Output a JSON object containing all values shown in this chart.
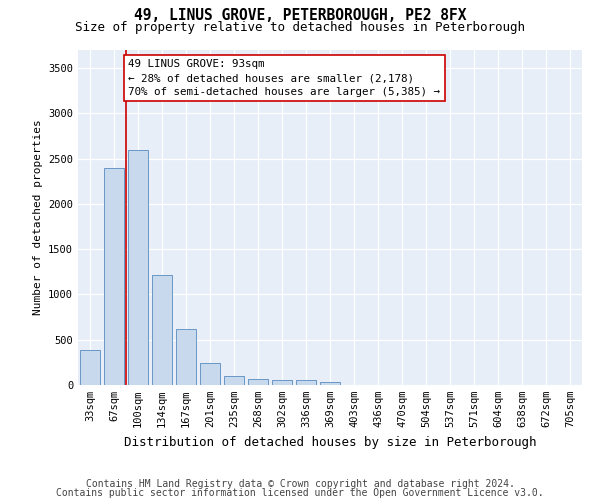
{
  "title": "49, LINUS GROVE, PETERBOROUGH, PE2 8FX",
  "subtitle": "Size of property relative to detached houses in Peterborough",
  "xlabel": "Distribution of detached houses by size in Peterborough",
  "ylabel": "Number of detached properties",
  "categories": [
    "33sqm",
    "67sqm",
    "100sqm",
    "134sqm",
    "167sqm",
    "201sqm",
    "235sqm",
    "268sqm",
    "302sqm",
    "336sqm",
    "369sqm",
    "403sqm",
    "436sqm",
    "470sqm",
    "504sqm",
    "537sqm",
    "571sqm",
    "604sqm",
    "638sqm",
    "672sqm",
    "705sqm"
  ],
  "values": [
    390,
    2400,
    2600,
    1220,
    620,
    240,
    100,
    65,
    55,
    50,
    30,
    0,
    0,
    0,
    0,
    0,
    0,
    0,
    0,
    0,
    0
  ],
  "bar_color": "#c9d9ed",
  "bar_edge_color": "#6898c8",
  "vline_x": 1.5,
  "vline_color": "#cc0000",
  "annotation_text": "49 LINUS GROVE: 93sqm\n← 28% of detached houses are smaller (2,178)\n70% of semi-detached houses are larger (5,385) →",
  "ylim": [
    0,
    3700
  ],
  "yticks": [
    0,
    500,
    1000,
    1500,
    2000,
    2500,
    3000,
    3500
  ],
  "background_color": "#ffffff",
  "plot_bg_color": "#e8eef8",
  "grid_color": "#ffffff",
  "footer_line1": "Contains HM Land Registry data © Crown copyright and database right 2024.",
  "footer_line2": "Contains public sector information licensed under the Open Government Licence v3.0.",
  "title_fontsize": 10.5,
  "subtitle_fontsize": 9,
  "annotation_fontsize": 7.8,
  "footer_fontsize": 7,
  "ylabel_fontsize": 8,
  "xlabel_fontsize": 9,
  "tick_fontsize": 7.5
}
